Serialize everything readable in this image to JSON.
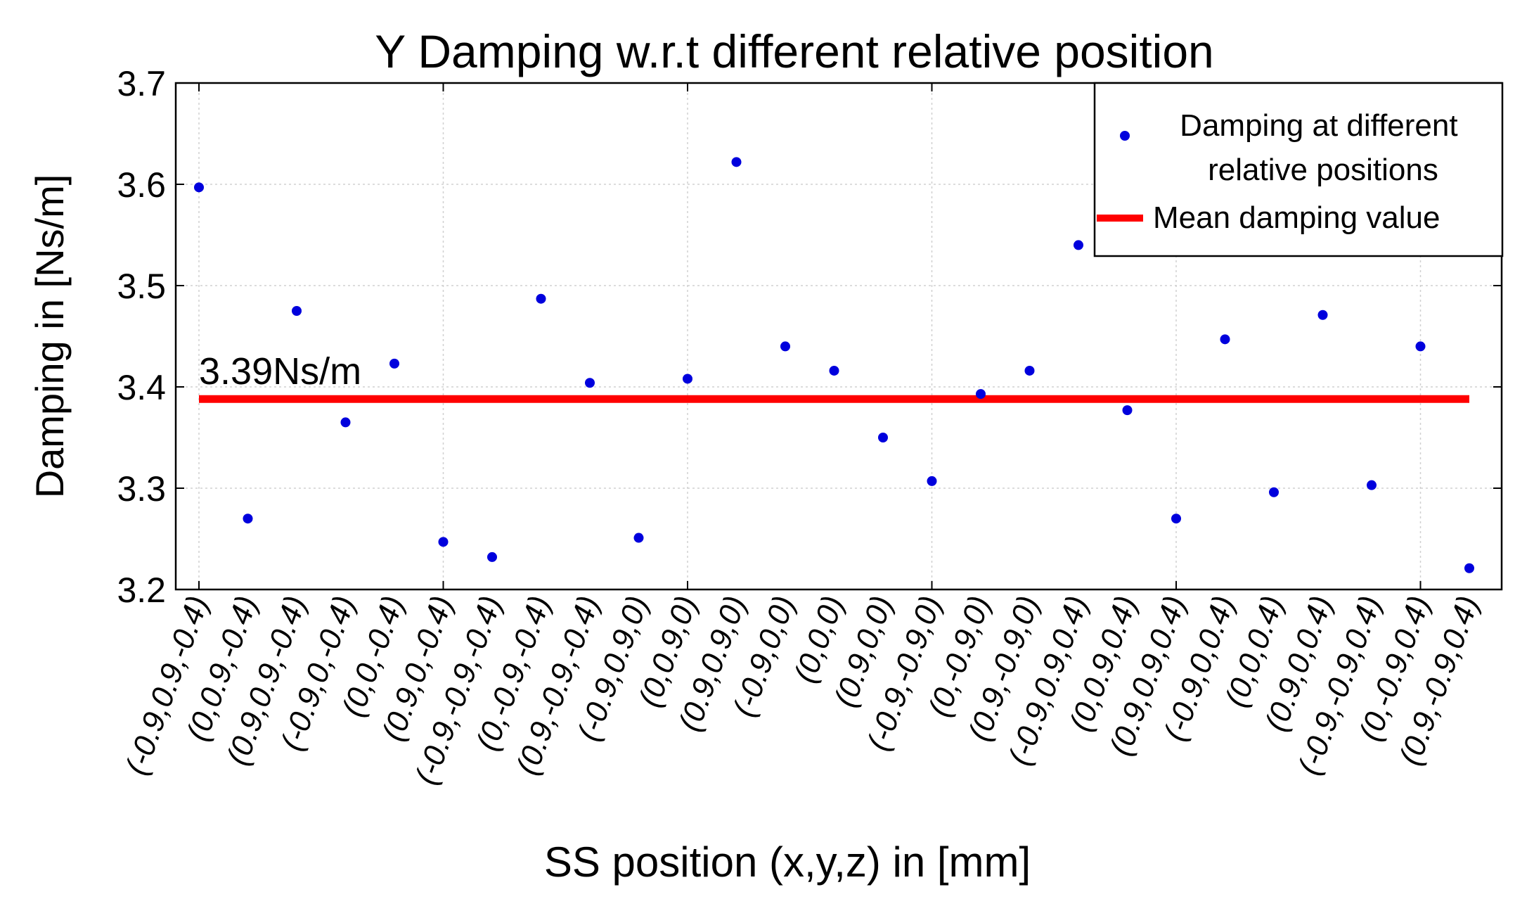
{
  "chart_data": {
    "type": "scatter",
    "title": "Y Damping w.r.t different relative position",
    "xlabel": "SS position (x,y,z) in [mm]",
    "ylabel": "Damping in [Ns/m]",
    "ylim": [
      3.2,
      3.7
    ],
    "yticks": [
      "3.2",
      "3.3",
      "3.4",
      "3.5",
      "3.6",
      "3.7"
    ],
    "grid": true,
    "categories": [
      "(-0.9,0.9,-0.4)",
      "(0,0.9,-0.4)",
      "(0.9,0.9,-0.4)",
      "(-0.9,0,-0.4)",
      "(0,0,-0.4)",
      "(0.9,0,-0.4)",
      "(-0.9,-0.9,-0.4)",
      "(0,-0.9,-0.4)",
      "(0.9,-0.9,-0.4)",
      "(-0.9,0.9,0)",
      "(0,0.9,0)",
      "(0.9,0.9,0)",
      "(-0.9,0,0)",
      "(0,0,0)",
      "(0.9,0,0)",
      "(-0.9,-0.9,0)",
      "(0,-0.9,0)",
      "(0.9,-0.9,0)",
      "(-0.9,0.9,0.4)",
      "(0,0.9,0.4)",
      "(0.9,0.9,0.4)",
      "(-0.9,0,0.4)",
      "(0,0,0.4)",
      "(0.9,0,0.4)",
      "(-0.9,-0.9,0.4)",
      "(0,-0.9,0.4)",
      "(0.9,-0.9,0.4)"
    ],
    "series": [
      {
        "name": "Damping at different relative positions",
        "kind": "points",
        "color": "#0000dd",
        "values": [
          3.597,
          3.27,
          3.475,
          3.365,
          3.423,
          3.247,
          3.232,
          3.487,
          3.404,
          3.251,
          3.408,
          3.622,
          3.44,
          3.416,
          3.35,
          3.307,
          3.393,
          3.416,
          3.54,
          3.377,
          3.27,
          3.447,
          3.296,
          3.471,
          3.303,
          3.44,
          3.221
        ]
      },
      {
        "name": "Mean damping value",
        "kind": "line",
        "color": "#ff0000",
        "value": 3.388
      }
    ],
    "legend": {
      "position": "top-right",
      "entries": [
        "Damping at different relative positions",
        "Mean damping value"
      ]
    },
    "annotations": [
      {
        "text": "3.39Ns/m",
        "category_index": 0,
        "y": 3.4
      }
    ]
  }
}
